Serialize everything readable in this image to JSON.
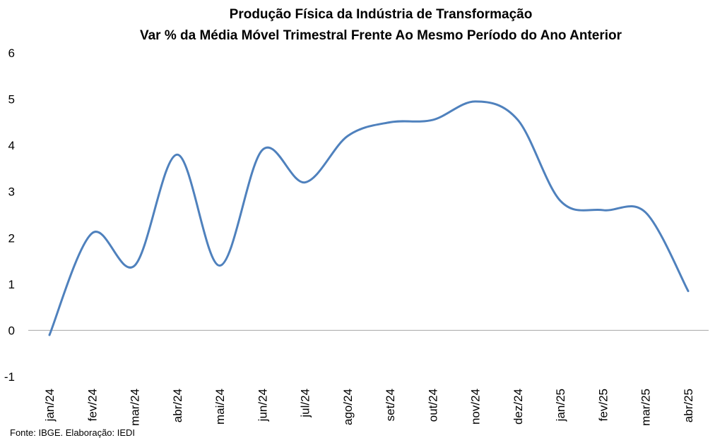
{
  "chart_data": {
    "type": "line",
    "title": "Produção Física da Indústria de Transformação",
    "subtitle": "Var % da Média Móvel Trimestral Frente Ao Mesmo Período do Ano Anterior",
    "xlabel": "",
    "ylabel": "",
    "categories": [
      "jan/24",
      "fev/24",
      "mar/24",
      "abr/24",
      "mai/24",
      "jun/24",
      "jul/24",
      "ago/24",
      "set/24",
      "out/24",
      "nov/24",
      "dez/24",
      "jan/25",
      "fev/25",
      "mar/25",
      "abr/25"
    ],
    "series": [
      {
        "values": [
          -0.1,
          2.1,
          1.4,
          3.8,
          1.4,
          3.9,
          3.2,
          4.2,
          4.5,
          4.55,
          4.95,
          4.55,
          2.8,
          2.6,
          2.55,
          0.85
        ],
        "color": "#4f81bd"
      }
    ],
    "yticks": [
      -1,
      0,
      1,
      2,
      3,
      4,
      5,
      6
    ],
    "ylim": [
      -1,
      6
    ],
    "grid": false,
    "zero_line": true,
    "legend": "none"
  },
  "source": "Fonte: IBGE. Elaboração: IEDI"
}
